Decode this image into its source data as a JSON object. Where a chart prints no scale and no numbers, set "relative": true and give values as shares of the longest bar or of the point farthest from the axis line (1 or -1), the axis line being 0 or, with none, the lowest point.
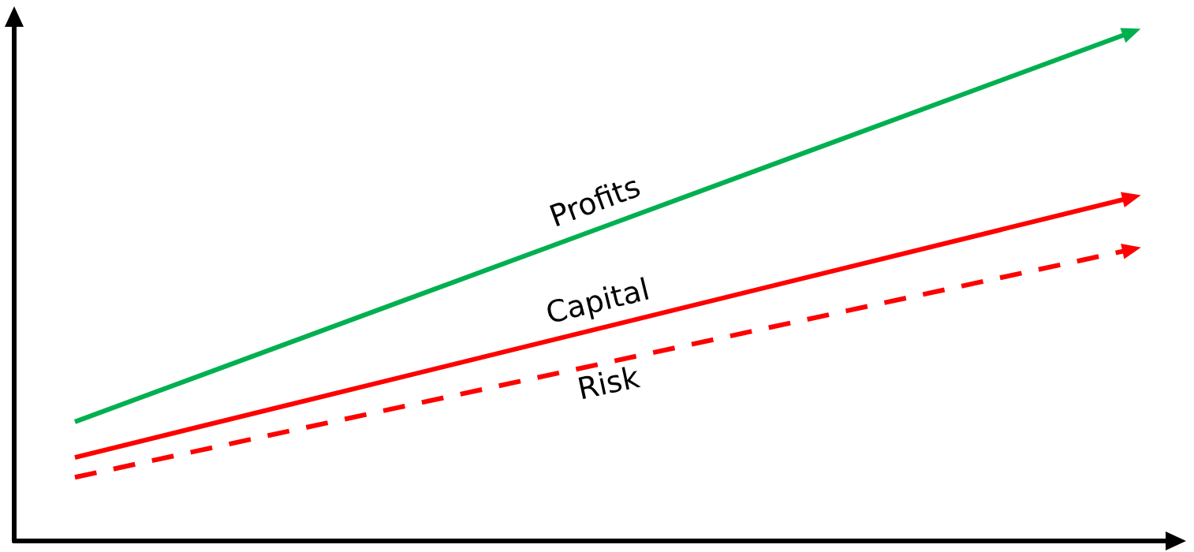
{
  "chart_data": {
    "type": "line",
    "relative": true,
    "categories": [
      null,
      null
    ],
    "legend": false,
    "series": [
      {
        "name": "Profits",
        "color": "#00b050",
        "values": [
          0.234,
          1
        ],
        "line_style": "solid"
      },
      {
        "name": "Capital",
        "color": "#ff0000",
        "values": [
          0.164,
          0.675
        ],
        "line_style": "solid"
      },
      {
        "name": "Risk",
        "color": "#ff0000",
        "values": [
          0.125,
          0.573
        ],
        "line_style": "dashed"
      }
    ]
  }
}
